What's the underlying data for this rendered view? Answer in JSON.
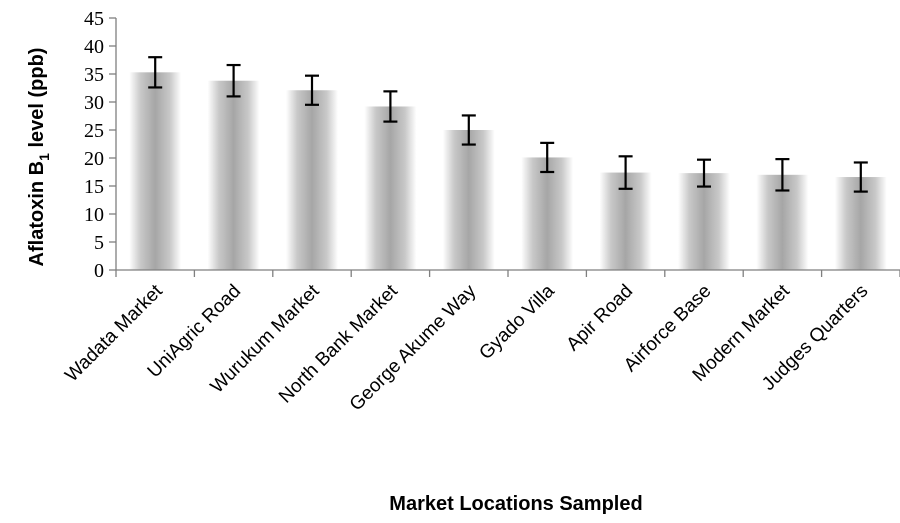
{
  "chart_data": {
    "type": "bar",
    "xlabel": "Market Locations Sampled",
    "ylabel": "Aflatoxin B₁ level (ppb)",
    "ylabel_parts": [
      "Aflatoxin B",
      "1",
      " level (ppb)"
    ],
    "ylim": [
      0,
      45
    ],
    "yticks": [
      0,
      5,
      10,
      15,
      20,
      25,
      30,
      35,
      40,
      45
    ],
    "grid": false,
    "bar_color": "#a6a6a6",
    "categories": [
      "Wadata Market",
      "UniAgric Road",
      "Wurukum Market",
      "North Bank Market",
      "George Akume Way",
      "Gyado Villa",
      "Apir Road",
      "Airforce Base",
      "Modern Market",
      "Judges Quarters"
    ],
    "values": [
      35.3,
      33.8,
      32.1,
      29.2,
      25.0,
      20.1,
      17.4,
      17.3,
      17.0,
      16.6
    ],
    "errors": [
      2.7,
      2.8,
      2.6,
      2.7,
      2.6,
      2.6,
      2.9,
      2.4,
      2.8,
      2.6
    ]
  }
}
